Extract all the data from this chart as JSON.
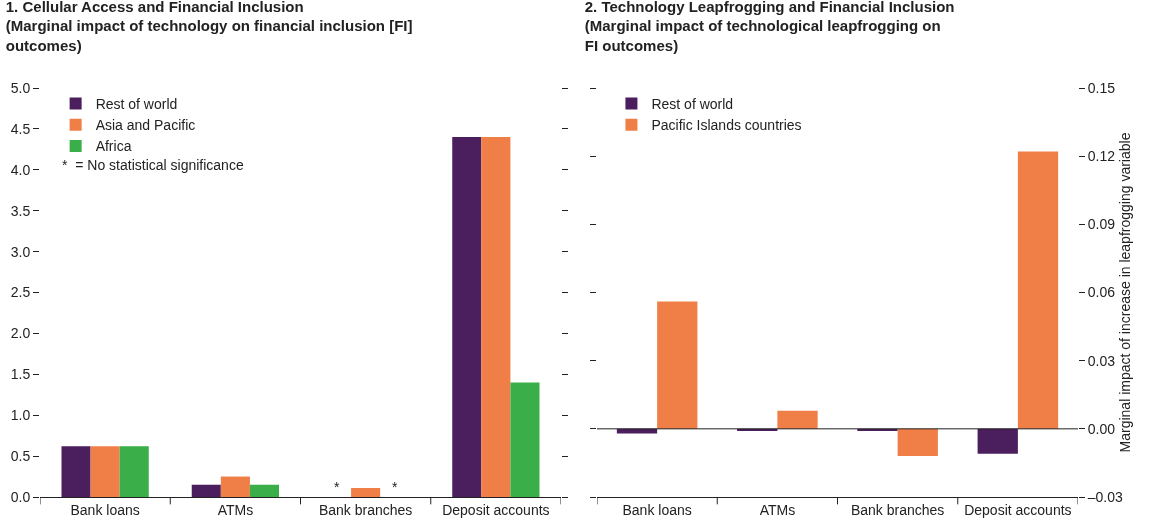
{
  "chart_data": [
    {
      "type": "bar",
      "title": "1. Cellular Access and Financial Inclusion\n(Marginal impact of technology on financial inclusion [FI]\noutcomes)",
      "categories": [
        "Bank loans",
        "ATMs",
        "Bank branches",
        "Deposit accounts"
      ],
      "series": [
        {
          "name": "Rest of world",
          "color": "#4b1f5e",
          "values": [
            0.62,
            0.15,
            null,
            4.4
          ]
        },
        {
          "name": "Asia and Pacific",
          "color": "#f07f47",
          "values": [
            0.62,
            0.25,
            0.11,
            4.4
          ]
        },
        {
          "name": "Africa",
          "color": "#3aaf49",
          "values": [
            0.62,
            0.15,
            null,
            1.4
          ]
        }
      ],
      "ylim": [
        0,
        5
      ],
      "yticks": [
        {
          "value": 0,
          "label": "0.0"
        },
        0.5,
        {
          "value": 1,
          "label": "1.0"
        },
        1.5,
        {
          "value": 2,
          "label": "2.0"
        },
        2.5,
        {
          "value": 3,
          "label": "3.0"
        },
        3.5,
        {
          "value": 4,
          "label": "4.0"
        },
        4.5,
        {
          "value": 5,
          "label": "5.0"
        }
      ],
      "annotations": [
        "*  = No statistical significance",
        {
          "text": "*",
          "x": "Bank branches",
          "y": 0
        },
        {
          "text": "*",
          "x": "Bank branches",
          "y": 0
        }
      ],
      "legend": "top left",
      "grid": false
    },
    {
      "type": "bar",
      "title": "2. Technology Leapfrogging and Financial Inclusion\n(Marginal impact of technological leapfrogging on\nFI outcomes)",
      "categories": [
        "Bank loans",
        "ATMs",
        "Bank branches",
        "Deposit accounts"
      ],
      "series": [
        {
          "name": "Rest of world",
          "color": "#4b1f5e",
          "axis": "y2",
          "values": [
            -0.002,
            -0.001,
            -0.001,
            -0.011
          ]
        },
        {
          "name": "Pacific Islands countries",
          "color": "#f07f47",
          "axis": "y2",
          "values": [
            0.056,
            0.008,
            -0.012,
            0.122
          ]
        }
      ],
      "y2label": "Marginal impact of increase in leapfrogging variable",
      "y2lim": [
        -0.03,
        0.15
      ],
      "y2ticks": [
        {
          "value": -0.03,
          "label": "–0.03"
        },
        {
          "value": 0,
          "label": "0.00"
        },
        {
          "value": 0.03,
          "label": "0.03"
        },
        {
          "value": 0.06,
          "label": "0.06"
        },
        {
          "value": 0.09,
          "label": "0.09"
        },
        {
          "value": 0.12,
          "label": "0.12"
        },
        {
          "value": 0.15,
          "label": "0.15"
        }
      ],
      "ref_lines": [
        {
          "axis": "y2",
          "value": 0,
          "color": "#222222"
        }
      ],
      "legend": "top left",
      "grid": false
    }
  ]
}
